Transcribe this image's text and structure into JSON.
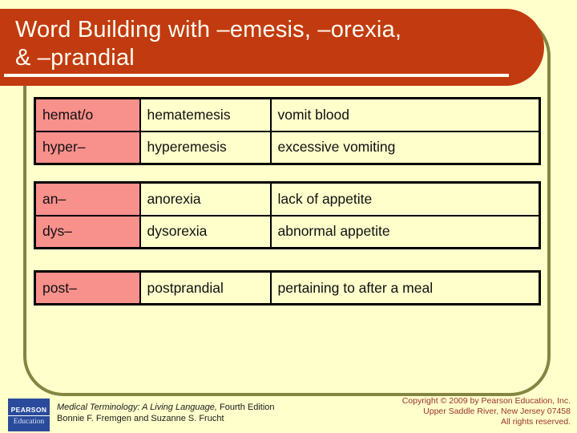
{
  "slide": {
    "title_line1": "Word Building with –emesis, –orexia,",
    "title_line2": "& –prandial"
  },
  "tables": [
    {
      "rows": [
        {
          "word_part": "hemat/o",
          "term": "hematemesis",
          "meaning": "vomit blood"
        },
        {
          "word_part": "hyper–",
          "term": "hyperemesis",
          "meaning": "excessive vomiting"
        }
      ]
    },
    {
      "rows": [
        {
          "word_part": "an–",
          "term": "anorexia",
          "meaning": "lack of appetite"
        },
        {
          "word_part": "dys–",
          "term": "dysorexia",
          "meaning": "abnormal appetite"
        }
      ]
    },
    {
      "rows": [
        {
          "word_part": "post–",
          "term": "postprandial",
          "meaning": "pertaining to after a meal"
        }
      ]
    }
  ],
  "footer": {
    "logo": {
      "brand": "PEARSON",
      "division": "Education"
    },
    "book_title_italic": "Medical Terminology: A Living Language,",
    "book_title_rest": " Fourth Edition",
    "authors": "Bonnie F. Fremgen and Suzanne S. Frucht",
    "copyright_line1": "Copyright © 2009 by Pearson Education, Inc.",
    "copyright_line2": "Upper Saddle River, New Jersey 07458",
    "copyright_line3": "All rights reserved."
  },
  "colors": {
    "background": "#FFFFCC",
    "title_bar": "#C23B10",
    "title_text": "#FFFDF0",
    "frame_border": "#848542",
    "word_part_cell": "#F8908C",
    "table_border": "#000000",
    "copyright_text": "#99332A",
    "pearson_blue": "#2A4B9B"
  }
}
